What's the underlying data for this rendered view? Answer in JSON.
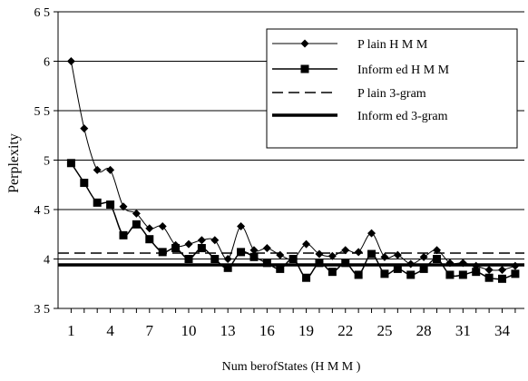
{
  "chart_data": {
    "type": "line",
    "xlabel": "Num berofStates (H M M )",
    "ylabel": "Perplexity",
    "xlim": [
      0,
      35.7
    ],
    "ylim": [
      3.5,
      6.5
    ],
    "yticks": [
      3.5,
      4,
      4.5,
      5,
      5.5,
      6,
      6.5
    ],
    "ytick_labels": [
      "3 5",
      "4",
      "4 5",
      "5",
      "5 5",
      "6",
      "6 5"
    ],
    "xticks": [
      1,
      4,
      7,
      10,
      13,
      16,
      19,
      22,
      25,
      28,
      31,
      34
    ],
    "xtick_labels": [
      "1",
      "4",
      "7",
      "10",
      "13",
      "16",
      "19",
      "22",
      "25",
      "28",
      "31",
      "34"
    ],
    "grid": "horizontal",
    "legend_position": "top-right",
    "series": [
      {
        "name": "P lain H M M",
        "style": "diamond-line",
        "color": "#000000",
        "x": [
          1,
          2,
          3,
          4,
          5,
          6,
          7,
          8,
          9,
          10,
          11,
          12,
          13,
          14,
          15,
          16,
          17,
          18,
          19,
          20,
          21,
          22,
          23,
          24,
          25,
          26,
          27,
          28,
          29,
          30,
          31,
          32,
          33,
          34,
          35
        ],
        "y": [
          6.0,
          5.32,
          4.9,
          4.9,
          4.53,
          4.46,
          4.31,
          4.33,
          4.14,
          4.15,
          4.19,
          4.19,
          4.0,
          4.33,
          4.09,
          4.11,
          4.04,
          4.0,
          4.15,
          4.05,
          4.03,
          4.09,
          4.07,
          4.26,
          4.02,
          4.04,
          3.95,
          4.02,
          4.09,
          3.96,
          3.96,
          3.93,
          3.89,
          3.89,
          3.93
        ]
      },
      {
        "name": "Inform ed H M M",
        "style": "square-line",
        "color": "#000000",
        "x": [
          1,
          2,
          3,
          4,
          5,
          6,
          7,
          8,
          9,
          10,
          11,
          12,
          13,
          14,
          15,
          16,
          17,
          18,
          19,
          20,
          21,
          22,
          23,
          24,
          25,
          26,
          27,
          28,
          29,
          30,
          31,
          32,
          33,
          34,
          35
        ],
        "y": [
          4.97,
          4.77,
          4.57,
          4.55,
          4.24,
          4.35,
          4.2,
          4.07,
          4.11,
          4.0,
          4.11,
          4.0,
          3.91,
          4.07,
          4.02,
          3.96,
          3.9,
          4.0,
          3.81,
          3.96,
          3.87,
          3.96,
          3.84,
          4.05,
          3.85,
          3.9,
          3.84,
          3.9,
          4.0,
          3.84,
          3.84,
          3.87,
          3.81,
          3.8,
          3.85
        ]
      },
      {
        "name": "P lain 3-gram",
        "style": "dashed",
        "color": "#000000",
        "constant": 4.06
      },
      {
        "name": "Inform ed 3-gram",
        "style": "thick-solid",
        "color": "#000000",
        "constant": 3.94
      }
    ]
  }
}
